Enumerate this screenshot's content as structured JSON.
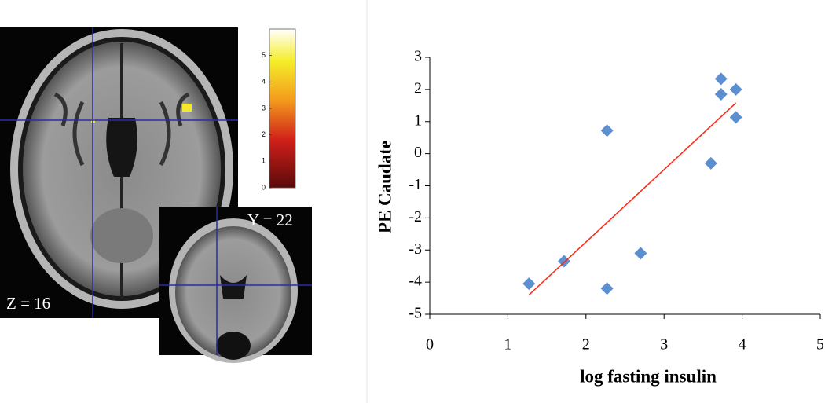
{
  "chart_data": [
    {
      "type": "scatter",
      "x_label": "log fasting insulin",
      "y_label": "PE Caudate",
      "series": [
        {
          "color": "#5b8fcf",
          "x": [
            1.27,
            1.72,
            2.27,
            2.27,
            2.7,
            3.6,
            3.73,
            3.73,
            3.92,
            3.92
          ],
          "values": [
            -4.05,
            -3.35,
            0.72,
            -4.2,
            -3.1,
            -0.3,
            2.33,
            1.85,
            2.0,
            1.13
          ]
        }
      ],
      "trendline": {
        "color": "#ff2a1a",
        "x": [
          1.27,
          3.92
        ],
        "y": [
          -4.4,
          1.58
        ]
      },
      "xlim": [
        0,
        5
      ],
      "ylim": [
        -5,
        3
      ],
      "xticks": [
        0,
        1,
        2,
        3,
        4,
        5
      ],
      "yticks": [
        -5,
        -4,
        -3,
        -2,
        -1,
        0,
        1,
        2,
        3
      ]
    },
    {
      "type": "colorbar",
      "ylim": [
        0,
        6
      ],
      "yticks": [
        0,
        1,
        2,
        3,
        4,
        5
      ]
    }
  ],
  "images": {
    "axial_label": "Z = 16",
    "coronal_label": "Y = 22"
  }
}
